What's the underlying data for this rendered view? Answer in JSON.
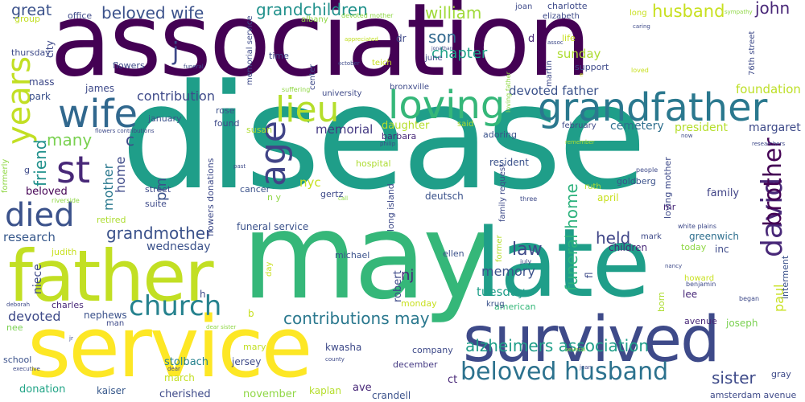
{
  "words": [
    {
      "text": "disease",
      "color": "#1f9e89"
    },
    {
      "text": "association",
      "color": "#440154"
    },
    {
      "text": "may",
      "color": "#35b779"
    },
    {
      "text": "late",
      "color": "#1f9e89"
    },
    {
      "text": "service",
      "color": "#fde725"
    },
    {
      "text": "father",
      "color": "#c2df23"
    },
    {
      "text": "survived",
      "color": "#3e4a89"
    },
    {
      "text": "grandfather",
      "color": "#2a788e"
    },
    {
      "text": "loving",
      "color": "#35b779"
    },
    {
      "text": "wife",
      "color": "#31688e"
    },
    {
      "text": "lieu",
      "color": "#b5de2b"
    },
    {
      "text": "age",
      "color": "#414487"
    },
    {
      "text": "years",
      "color": "#c2df23"
    },
    {
      "text": "died",
      "color": "#3b528b"
    },
    {
      "text": "st",
      "color": "#482878"
    },
    {
      "text": "church",
      "color": "#26828e"
    },
    {
      "text": "beloved husband",
      "color": "#2c728e"
    },
    {
      "text": "david",
      "color": "#482878"
    },
    {
      "text": "beloved wife",
      "color": "#3b528b"
    },
    {
      "text": "grandchildren",
      "color": "#21918c"
    },
    {
      "text": "husband",
      "color": "#c8e020"
    },
    {
      "text": "william",
      "color": "#a0da39"
    },
    {
      "text": "john",
      "color": "#482677"
    },
    {
      "text": "brother",
      "color": "#440154"
    },
    {
      "text": "grandmother",
      "color": "#3b528b"
    },
    {
      "text": "contributions may",
      "color": "#2a788e"
    },
    {
      "text": "alzheimers association",
      "color": "#1f9e89"
    },
    {
      "text": "sister",
      "color": "#3e4a89"
    },
    {
      "text": "law",
      "color": "#3e4a89"
    },
    {
      "text": "held",
      "color": "#404688"
    },
    {
      "text": "funeral home",
      "color": "#2db27d"
    },
    {
      "text": "great",
      "color": "#3b528b"
    },
    {
      "text": "j",
      "color": "#3e4a89"
    },
    {
      "text": "son",
      "color": "#31688e"
    },
    {
      "text": "chapter",
      "color": "#1fa188"
    },
    {
      "text": "sunday",
      "color": "#addc30"
    },
    {
      "text": "contribution",
      "color": "#3e4a89"
    },
    {
      "text": "devoted father",
      "color": "#3b528b"
    },
    {
      "text": "foundation",
      "color": "#bddf26"
    },
    {
      "text": "memorial",
      "color": "#443983"
    },
    {
      "text": "cemetery",
      "color": "#2e6f8e"
    },
    {
      "text": "president",
      "color": "#b5de2b"
    },
    {
      "text": "margaret",
      "color": "#3e4a89"
    },
    {
      "text": "many",
      "color": "#7ad151"
    },
    {
      "text": "friend",
      "color": "#21918c"
    },
    {
      "text": "mother",
      "color": "#2a788e"
    },
    {
      "text": "home",
      "color": "#3e4a89"
    },
    {
      "text": "pm",
      "color": "#3b528b"
    },
    {
      "text": "nyc",
      "color": "#c8e020"
    },
    {
      "text": "daughter",
      "color": "#b5de2b"
    },
    {
      "text": "family",
      "color": "#414487"
    },
    {
      "text": "research",
      "color": "#38598c"
    },
    {
      "text": "beloved",
      "color": "#440154"
    },
    {
      "text": "wednesday",
      "color": "#3b528b"
    },
    {
      "text": "memory",
      "color": "#3b528b"
    },
    {
      "text": "tuesday",
      "color": "#1f9e89"
    },
    {
      "text": "nj",
      "color": "#482878"
    },
    {
      "text": "paul",
      "color": "#c8e020"
    },
    {
      "text": "devoted",
      "color": "#3e4a89"
    },
    {
      "text": "funeral service",
      "color": "#3b528b"
    },
    {
      "text": "greenwich",
      "color": "#2e6f8e"
    },
    {
      "text": "robert",
      "color": "#3e4a89"
    },
    {
      "text": "children",
      "color": "#482878"
    },
    {
      "text": "joseph",
      "color": "#7ad151"
    },
    {
      "text": "nephews",
      "color": "#3b528b"
    },
    {
      "text": "mary",
      "color": "#c2df23"
    },
    {
      "text": "march",
      "color": "#c2df23"
    },
    {
      "text": "cherished",
      "color": "#3e4a89"
    },
    {
      "text": "november",
      "color": "#8fd744"
    },
    {
      "text": "donation",
      "color": "#20a486"
    },
    {
      "text": "kaiser",
      "color": "#38598c"
    },
    {
      "text": "crandell",
      "color": "#3b528b"
    },
    {
      "text": "ct",
      "color": "#482878"
    },
    {
      "text": "gray",
      "color": "#3e4a89"
    },
    {
      "text": "amsterdam avenue",
      "color": "#3e4a89"
    },
    {
      "text": "december",
      "color": "#443983"
    },
    {
      "text": "kaplan",
      "color": "#b5de2b"
    },
    {
      "text": "company",
      "color": "#3e4a89"
    },
    {
      "text": "ave",
      "color": "#482878"
    },
    {
      "text": "kwasha",
      "color": "#3e4a89"
    },
    {
      "text": "jersey",
      "color": "#3e4a89"
    },
    {
      "text": "stolbach",
      "color": "#26828e"
    },
    {
      "text": "school",
      "color": "#3b528b"
    },
    {
      "text": "charles",
      "color": "#482878"
    },
    {
      "text": "niece",
      "color": "#3e4a89"
    },
    {
      "text": "nee",
      "color": "#7ad151"
    },
    {
      "text": "judith",
      "color": "#c8e020"
    },
    {
      "text": "michael",
      "color": "#3b528b"
    },
    {
      "text": "american",
      "color": "#35b779"
    },
    {
      "text": "monday",
      "color": "#c8e020"
    },
    {
      "text": "krug",
      "color": "#3b528b"
    },
    {
      "text": "inc",
      "color": "#3e4a89"
    },
    {
      "text": "today",
      "color": "#8fd744"
    },
    {
      "text": "mark",
      "color": "#3e4a89"
    },
    {
      "text": "lee",
      "color": "#482878"
    },
    {
      "text": "avenue",
      "color": "#482878"
    },
    {
      "text": "interment",
      "color": "#3b528b"
    },
    {
      "text": "born",
      "color": "#addc30"
    },
    {
      "text": "howard",
      "color": "#c8e020"
    },
    {
      "text": "benjamin",
      "color": "#3e4a89"
    },
    {
      "text": "began",
      "color": "#3e4a89"
    },
    {
      "text": "fl",
      "color": "#3e4a89"
    },
    {
      "text": "former",
      "color": "#b5de2b"
    },
    {
      "text": "july",
      "color": "#3e4a89"
    },
    {
      "text": "ellen",
      "color": "#3b528b"
    },
    {
      "text": "long island",
      "color": "#3e4a89"
    },
    {
      "text": "deutsch",
      "color": "#3b528b"
    },
    {
      "text": "gertz",
      "color": "#3e4a89"
    },
    {
      "text": "n y",
      "color": "#8fd744"
    },
    {
      "text": "cancer",
      "color": "#3b528b"
    },
    {
      "text": "street",
      "color": "#3e4a89"
    },
    {
      "text": "suite",
      "color": "#3e4a89"
    },
    {
      "text": "retired",
      "color": "#addc30"
    },
    {
      "text": "hospital",
      "color": "#addc30"
    },
    {
      "text": "resident",
      "color": "#3b528b"
    },
    {
      "text": "goldberg",
      "color": "#3b528b"
    },
    {
      "text": "ruth",
      "color": "#b5de2b"
    },
    {
      "text": "april",
      "color": "#c8e020"
    },
    {
      "text": "loving mother",
      "color": "#3e4a89"
    },
    {
      "text": "white plains",
      "color": "#3e4a89"
    },
    {
      "text": "mr",
      "color": "#482878"
    },
    {
      "text": "three",
      "color": "#3e4a89"
    },
    {
      "text": "people",
      "color": "#3e4a89"
    },
    {
      "text": "researchers",
      "color": "#3e4a89"
    },
    {
      "text": "now",
      "color": "#3e4a89"
    },
    {
      "text": "remember",
      "color": "#addc30"
    },
    {
      "text": "february",
      "color": "#3e4a89"
    },
    {
      "text": "adoring",
      "color": "#3b528b"
    },
    {
      "text": "said",
      "color": "#addc30"
    },
    {
      "text": "barbara",
      "color": "#482878"
    },
    {
      "text": "philip",
      "color": "#3e4a89"
    },
    {
      "text": "family request",
      "color": "#3e4a89"
    },
    {
      "text": "susan",
      "color": "#addc30"
    },
    {
      "text": "found",
      "color": "#3e4a89"
    },
    {
      "text": "rose",
      "color": "#3b528b"
    },
    {
      "text": "january",
      "color": "#3b528b"
    },
    {
      "text": "flowers contributions",
      "color": "#3e4a89"
    },
    {
      "text": "flowers donations",
      "color": "#3e4a89"
    },
    {
      "text": "c",
      "color": "#3e4a89"
    },
    {
      "text": "formerly",
      "color": "#8fd744"
    },
    {
      "text": "past",
      "color": "#3e4a89"
    },
    {
      "text": "riverside",
      "color": "#8fd744"
    },
    {
      "text": "call",
      "color": "#8fd744"
    },
    {
      "text": "park",
      "color": "#3b528b"
    },
    {
      "text": "james",
      "color": "#3e4a89"
    },
    {
      "text": "mass",
      "color": "#3e4a89"
    },
    {
      "text": "thursday",
      "color": "#3e4a89"
    },
    {
      "text": "city",
      "color": "#3e4a89"
    },
    {
      "text": "group",
      "color": "#c2df23"
    },
    {
      "text": "office",
      "color": "#3e4a89"
    },
    {
      "text": "albany",
      "color": "#8fd744"
    },
    {
      "text": "devoted mother",
      "color": "#8fd744"
    },
    {
      "text": "joan",
      "color": "#3e4a89"
    },
    {
      "text": "charlotte",
      "color": "#3e4a89"
    },
    {
      "text": "elizabeth",
      "color": "#3e4a89"
    },
    {
      "text": "long",
      "color": "#c8e020"
    },
    {
      "text": "sympathy",
      "color": "#8fd744"
    },
    {
      "text": "caring",
      "color": "#3e4a89"
    },
    {
      "text": "76th street",
      "color": "#3e4a89"
    },
    {
      "text": "flowers",
      "color": "#3e4a89"
    },
    {
      "text": "funeral",
      "color": "#3e4a89"
    },
    {
      "text": "memorial service",
      "color": "#3e4a89"
    },
    {
      "text": "appreciated",
      "color": "#c2df23"
    },
    {
      "text": "jonathan",
      "color": "#3e4a89"
    },
    {
      "text": "october",
      "color": "#3e4a89"
    },
    {
      "text": "teich",
      "color": "#c8e020"
    },
    {
      "text": "june",
      "color": "#3e4a89"
    },
    {
      "text": "time",
      "color": "#3e4a89"
    },
    {
      "text": "dr",
      "color": "#3e4a89"
    },
    {
      "text": "center",
      "color": "#3e4a89"
    },
    {
      "text": "suffering",
      "color": "#8fd744"
    },
    {
      "text": "university",
      "color": "#3e4a89"
    },
    {
      "text": "bronxville",
      "color": "#3e4a89"
    },
    {
      "text": "loving father",
      "color": "#8fd744"
    },
    {
      "text": "martin",
      "color": "#3e4a89"
    },
    {
      "text": "life",
      "color": "#c8e020"
    },
    {
      "text": "assoc",
      "color": "#3e4a89"
    },
    {
      "text": "support",
      "color": "#3e4a89"
    },
    {
      "text": "loved",
      "color": "#c8e020"
    },
    {
      "text": "d",
      "color": "#482878"
    },
    {
      "text": "h",
      "color": "#3e4a89"
    },
    {
      "text": "b",
      "color": "#c8e020"
    },
    {
      "text": "nancy",
      "color": "#3e4a89"
    },
    {
      "text": "day",
      "color": "#c8e020"
    },
    {
      "text": "several",
      "color": "#8fd744"
    },
    {
      "text": "county",
      "color": "#3e4a89"
    },
    {
      "text": "jean",
      "color": "#3e4a89"
    },
    {
      "text": "dear sister",
      "color": "#8fd744"
    },
    {
      "text": "executive",
      "color": "#3e4a89"
    },
    {
      "text": "dear",
      "color": "#3e4a89"
    },
    {
      "text": "deborah",
      "color": "#3e4a89"
    },
    {
      "text": "man",
      "color": "#3e4a89"
    },
    {
      "text": "jr",
      "color": "#3e4a89"
    },
    {
      "text": "rd",
      "color": "#3e4a89"
    },
    {
      "text": "g",
      "color": "#3e4a89"
    },
    {
      "text": "e",
      "color": "#c8e020"
    }
  ]
}
